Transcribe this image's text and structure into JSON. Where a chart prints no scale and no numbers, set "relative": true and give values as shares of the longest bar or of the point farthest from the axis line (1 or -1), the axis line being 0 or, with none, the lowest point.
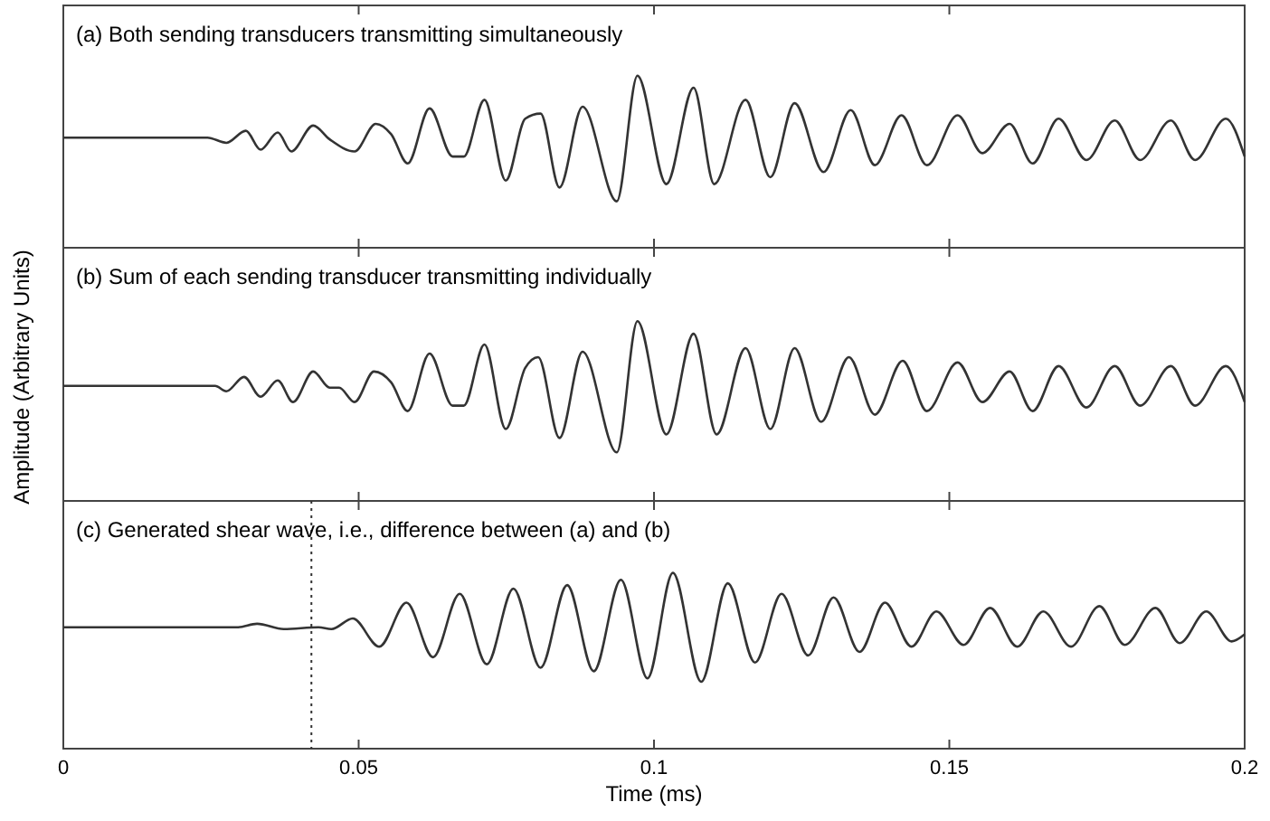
{
  "chart_data": [
    {
      "type": "line",
      "title": "(a) Both sending transducers transmitting simultaneously",
      "relative": true,
      "tick_labels": false,
      "xlim": [
        0,
        0.2
      ],
      "xticks": [
        {
          "value": 0,
          "label": null
        },
        {
          "value": 0.05,
          "label": null
        },
        {
          "value": 0.1,
          "label": null
        },
        {
          "value": 0.15,
          "label": null
        },
        {
          "value": 0.2,
          "label": null
        }
      ],
      "x": [
        0,
        0.0224,
        0.0244,
        0.0276,
        0.0309,
        0.0334,
        0.0363,
        0.0386,
        0.0423,
        0.0451,
        0.0493,
        0.0529,
        0.0555,
        0.0583,
        0.062,
        0.0659,
        0.0678,
        0.0713,
        0.0749,
        0.0782,
        0.0808,
        0.084,
        0.0879,
        0.0937,
        0.0972,
        0.1021,
        0.1067,
        0.1102,
        0.1155,
        0.1197,
        0.1238,
        0.1287,
        0.1333,
        0.1374,
        0.1419,
        0.1462,
        0.1514,
        0.1556,
        0.1602,
        0.1641,
        0.1685,
        0.1732,
        0.178,
        0.1823,
        0.1875,
        0.1916,
        0.1968,
        0.2
      ],
      "series": [
        {
          "color": "#333333",
          "values": [
            0.64,
            0.64,
            0.64,
            0.61,
            0.68,
            0.57,
            0.67,
            0.56,
            0.71,
            0.63,
            0.56,
            0.72,
            0.66,
            0.49,
            0.81,
            0.53,
            0.53,
            0.86,
            0.39,
            0.75,
            0.78,
            0.35,
            0.82,
            0.27,
            1,
            0.37,
            0.93,
            0.37,
            0.86,
            0.41,
            0.84,
            0.44,
            0.8,
            0.48,
            0.77,
            0.48,
            0.77,
            0.55,
            0.72,
            0.49,
            0.75,
            0.51,
            0.74,
            0.51,
            0.74,
            0.51,
            0.75,
            0.53
          ]
        }
      ]
    },
    {
      "type": "line",
      "title": "(b) Sum of each sending transducer transmitting individually",
      "ylabel": "Amplitude (Arbitrary Units)",
      "relative": true,
      "tick_labels": false,
      "xlim": [
        0,
        0.2
      ],
      "xticks": [
        {
          "value": 0,
          "label": null
        },
        {
          "value": 0.05,
          "label": null
        },
        {
          "value": 0.1,
          "label": null
        },
        {
          "value": 0.15,
          "label": null
        },
        {
          "value": 0.2,
          "label": null
        }
      ],
      "x": [
        0,
        0.0257,
        0.0276,
        0.0306,
        0.0334,
        0.0363,
        0.0389,
        0.0423,
        0.0451,
        0.0467,
        0.0493,
        0.0526,
        0.0555,
        0.0583,
        0.062,
        0.0659,
        0.0678,
        0.0713,
        0.0749,
        0.0782,
        0.0804,
        0.084,
        0.0879,
        0.0937,
        0.0972,
        0.1021,
        0.1067,
        0.1106,
        0.1155,
        0.1197,
        0.1238,
        0.1283,
        0.133,
        0.1374,
        0.1421,
        0.1462,
        0.1514,
        0.1556,
        0.1602,
        0.1641,
        0.1685,
        0.1732,
        0.178,
        0.1823,
        0.1875,
        0.1916,
        0.1968,
        0.2
      ],
      "series": [
        {
          "color": "#333333",
          "values": [
            0.64,
            0.64,
            0.61,
            0.69,
            0.58,
            0.67,
            0.55,
            0.72,
            0.63,
            0.63,
            0.55,
            0.72,
            0.66,
            0.5,
            0.82,
            0.53,
            0.53,
            0.87,
            0.4,
            0.74,
            0.8,
            0.35,
            0.83,
            0.27,
            1,
            0.37,
            0.93,
            0.37,
            0.85,
            0.4,
            0.85,
            0.44,
            0.8,
            0.48,
            0.78,
            0.5,
            0.77,
            0.55,
            0.72,
            0.5,
            0.75,
            0.52,
            0.75,
            0.53,
            0.75,
            0.53,
            0.75,
            0.55
          ]
        }
      ]
    },
    {
      "type": "line",
      "title": "(c) Generated shear wave, i.e., difference between (a) and (b)",
      "xlabel": "Time (ms)",
      "relative": true,
      "tick_labels": "x",
      "xlim": [
        0,
        0.2
      ],
      "xticks": [
        0,
        0.05,
        0.1,
        0.15,
        0.2
      ],
      "ref_lines": [
        {
          "axis": "x",
          "value": 0.042,
          "line_style": "dotted",
          "color": "#333333"
        }
      ],
      "x": [
        0,
        0.0296,
        0.0328,
        0.0373,
        0.0432,
        0.0454,
        0.049,
        0.0535,
        0.0581,
        0.0626,
        0.0671,
        0.0717,
        0.0762,
        0.0808,
        0.0853,
        0.0898,
        0.0944,
        0.0989,
        0.1032,
        0.108,
        0.1125,
        0.1171,
        0.1216,
        0.1261,
        0.1304,
        0.1348,
        0.1391,
        0.1436,
        0.1478,
        0.1524,
        0.1569,
        0.1615,
        0.1659,
        0.1706,
        0.1754,
        0.1797,
        0.1849,
        0.189,
        0.1935,
        0.1978,
        0.2
      ],
      "series": [
        {
          "color": "#333333",
          "values": [
            0.69,
            0.69,
            0.71,
            0.68,
            0.69,
            0.68,
            0.74,
            0.58,
            0.83,
            0.52,
            0.88,
            0.48,
            0.91,
            0.46,
            0.93,
            0.44,
            0.96,
            0.4,
            1,
            0.38,
            0.94,
            0.49,
            0.88,
            0.53,
            0.86,
            0.55,
            0.83,
            0.58,
            0.78,
            0.59,
            0.8,
            0.58,
            0.78,
            0.58,
            0.81,
            0.59,
            0.8,
            0.6,
            0.78,
            0.61,
            0.65
          ]
        }
      ]
    }
  ]
}
